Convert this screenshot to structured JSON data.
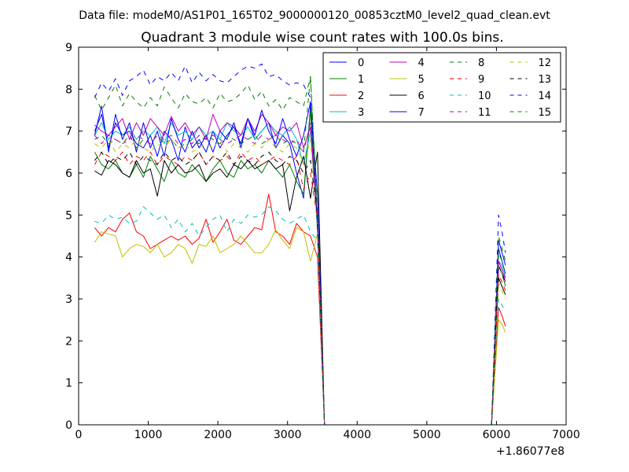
{
  "figure": {
    "suptitle": "Data file: modeM0/AS1P01_165T02_9000000120_00853cztM0_level2_quad_clean.evt",
    "title": "Quadrant 3 module wise count rates with 100.0s bins.",
    "x_offset_label": "+1.86077e8"
  },
  "chart_data": {
    "type": "line",
    "title": "Quadrant 3 module wise count rates with 100.0s bins.",
    "xlabel": "",
    "ylabel": "",
    "xlim": [
      0,
      7000
    ],
    "ylim": [
      0,
      9
    ],
    "x_offset": 186077000,
    "x_ticks": [
      0,
      1000,
      2000,
      3000,
      4000,
      5000,
      6000,
      7000
    ],
    "y_ticks": [
      0,
      1,
      2,
      3,
      4,
      5,
      6,
      7,
      8,
      9
    ],
    "grid": false,
    "legend_position": "top-right",
    "legend_columns": 4,
    "x": [
      230,
      330,
      430,
      530,
      630,
      730,
      830,
      930,
      1030,
      1130,
      1230,
      1330,
      1430,
      1530,
      1630,
      1730,
      1830,
      1930,
      2030,
      2130,
      2230,
      2330,
      2430,
      2530,
      2630,
      2730,
      2830,
      2930,
      3030,
      3130,
      3230,
      3330,
      3430,
      3530,
      3630,
      3730,
      3830,
      3930,
      4030,
      4130,
      4230,
      4330,
      4430,
      4530,
      4630,
      4730,
      4830,
      4930,
      5030,
      5130,
      5230,
      5330,
      5430,
      5530,
      5630,
      5730,
      5830,
      5930,
      6030,
      6080,
      6130
    ],
    "series": [
      {
        "name": "0",
        "color": "#0000ff",
        "dash": "solid",
        "values": [
          7.0,
          7.4,
          6.6,
          7.2,
          6.9,
          7.0,
          6.7,
          6.6,
          6.9,
          6.4,
          7.0,
          6.8,
          6.3,
          7.1,
          6.6,
          6.8,
          6.5,
          7.0,
          6.6,
          6.9,
          7.1,
          6.7,
          7.3,
          6.8,
          7.0,
          7.2,
          6.6,
          6.9,
          6.7,
          6.0,
          5.4,
          7.6,
          4.8,
          0,
          0,
          0,
          0,
          0,
          0,
          0,
          0,
          0,
          0,
          0,
          0,
          0,
          0,
          0,
          0,
          0,
          0,
          0,
          0,
          0,
          0,
          0,
          0,
          0,
          4.2,
          3.9,
          3.6
        ]
      },
      {
        "name": "1",
        "color": "#008000",
        "dash": "solid",
        "values": [
          6.5,
          6.2,
          6.1,
          6.3,
          6.0,
          5.9,
          6.2,
          5.9,
          6.4,
          6.1,
          5.8,
          6.3,
          6.0,
          5.9,
          6.2,
          6.0,
          5.8,
          6.1,
          6.3,
          6.0,
          5.9,
          6.3,
          6.1,
          6.2,
          6.0,
          6.3,
          6.1,
          5.9,
          6.2,
          5.8,
          5.5,
          7.5,
          4.6,
          0,
          0,
          0,
          0,
          0,
          0,
          0,
          0,
          0,
          0,
          0,
          0,
          0,
          0,
          0,
          0,
          0,
          0,
          0,
          0,
          0,
          0,
          0,
          0,
          0,
          3.8,
          3.6,
          3.3
        ]
      },
      {
        "name": "2",
        "color": "#ff0000",
        "dash": "solid",
        "values": [
          4.7,
          4.5,
          4.7,
          4.6,
          4.9,
          5.05,
          4.6,
          4.5,
          4.2,
          4.3,
          4.4,
          4.5,
          4.4,
          4.5,
          4.3,
          4.45,
          4.9,
          4.35,
          4.6,
          4.9,
          4.4,
          4.3,
          4.5,
          4.7,
          4.65,
          5.5,
          4.6,
          4.5,
          4.3,
          4.8,
          4.6,
          4.5,
          4.0,
          0,
          0,
          0,
          0,
          0,
          0,
          0,
          0,
          0,
          0,
          0,
          0,
          0,
          0,
          0,
          0,
          0,
          0,
          0,
          0,
          0,
          0,
          0,
          0,
          0,
          2.8,
          2.6,
          2.35
        ]
      },
      {
        "name": "3",
        "color": "#00bfbf",
        "dash": "solid",
        "values": [
          6.9,
          7.2,
          6.8,
          7.0,
          6.9,
          7.1,
          6.8,
          7.0,
          6.9,
          7.1,
          6.7,
          7.2,
          6.9,
          7.0,
          6.8,
          7.1,
          6.9,
          7.0,
          6.8,
          7.2,
          7.0,
          6.9,
          7.1,
          6.8,
          7.0,
          7.2,
          7.0,
          6.9,
          7.1,
          6.8,
          6.2,
          7.0,
          4.7,
          0,
          0,
          0,
          0,
          0,
          0,
          0,
          0,
          0,
          0,
          0,
          0,
          0,
          0,
          0,
          0,
          0,
          0,
          0,
          0,
          0,
          0,
          0,
          0,
          0,
          3.9,
          3.8,
          3.5
        ]
      },
      {
        "name": "4",
        "color": "#bf00bf",
        "dash": "solid",
        "values": [
          7.15,
          7.0,
          6.9,
          7.1,
          7.3,
          6.8,
          7.2,
          6.9,
          7.3,
          7.1,
          6.9,
          7.35,
          7.0,
          7.2,
          6.9,
          7.1,
          6.8,
          7.4,
          7.0,
          7.2,
          7.1,
          6.9,
          7.3,
          7.0,
          7.4,
          7.2,
          6.9,
          7.1,
          7.0,
          7.2,
          6.6,
          7.1,
          4.8,
          0,
          0,
          0,
          0,
          0,
          0,
          0,
          0,
          0,
          0,
          0,
          0,
          0,
          0,
          0,
          0,
          0,
          0,
          0,
          0,
          0,
          0,
          0,
          0,
          0,
          3.9,
          3.7,
          3.4
        ]
      },
      {
        "name": "5",
        "color": "#bfbf00",
        "dash": "solid",
        "values": [
          4.35,
          4.6,
          4.55,
          4.5,
          4.0,
          4.2,
          4.3,
          4.25,
          4.1,
          4.3,
          4.0,
          4.1,
          4.3,
          4.2,
          3.85,
          4.3,
          4.25,
          4.5,
          4.1,
          4.2,
          4.3,
          4.5,
          4.3,
          4.1,
          4.1,
          4.3,
          4.65,
          4.4,
          4.2,
          4.7,
          4.6,
          3.9,
          4.55,
          0,
          0,
          0,
          0,
          0,
          0,
          0,
          0,
          0,
          0,
          0,
          0,
          0,
          0,
          0,
          0,
          0,
          0,
          0,
          0,
          0,
          0,
          0,
          0,
          0,
          2.5,
          2.4,
          2.2
        ]
      },
      {
        "name": "6",
        "color": "#000000",
        "dash": "solid",
        "values": [
          6.05,
          5.95,
          6.3,
          6.2,
          6.0,
          5.9,
          6.3,
          6.0,
          6.1,
          5.45,
          6.3,
          6.0,
          6.2,
          6.0,
          6.05,
          6.2,
          5.8,
          6.0,
          6.1,
          5.9,
          6.2,
          6.1,
          6.3,
          6.1,
          6.2,
          6.3,
          6.1,
          6.2,
          5.1,
          5.9,
          6.4,
          5.4,
          6.5,
          0,
          0,
          0,
          0,
          0,
          0,
          0,
          0,
          0,
          0,
          0,
          0,
          0,
          0,
          0,
          0,
          0,
          0,
          0,
          0,
          0,
          0,
          0,
          0,
          0,
          3.5,
          3.3,
          3.1
        ]
      },
      {
        "name": "7",
        "color": "#0000ff",
        "dash": "solid",
        "values": [
          6.9,
          7.6,
          6.5,
          7.4,
          6.8,
          7.2,
          6.5,
          7.2,
          6.6,
          7.0,
          6.4,
          7.3,
          6.8,
          6.5,
          7.0,
          6.6,
          6.9,
          6.5,
          7.0,
          6.8,
          7.2,
          6.6,
          7.3,
          6.9,
          7.5,
          7.0,
          6.7,
          7.3,
          6.8,
          6.4,
          6.9,
          7.7,
          5.5,
          0,
          0,
          0,
          0,
          0,
          0,
          0,
          0,
          0,
          0,
          0,
          0,
          0,
          0,
          0,
          0,
          0,
          0,
          0,
          0,
          0,
          0,
          0,
          0,
          0,
          4.4,
          4.1,
          3.8
        ]
      },
      {
        "name": "8",
        "color": "#008000",
        "dash": "dashed",
        "values": [
          6.8,
          6.9,
          6.7,
          6.8,
          6.7,
          6.9,
          6.6,
          6.8,
          6.7,
          6.9,
          6.7,
          6.8,
          6.6,
          6.7,
          6.8,
          6.7,
          6.9,
          6.8,
          6.7,
          6.9,
          6.8,
          6.7,
          6.8,
          6.9,
          6.7,
          6.8,
          6.9,
          6.7,
          6.8,
          6.7,
          6.5,
          8.3,
          4.9,
          0,
          0,
          0,
          0,
          0,
          0,
          0,
          0,
          0,
          0,
          0,
          0,
          0,
          0,
          0,
          0,
          0,
          0,
          0,
          0,
          0,
          0,
          0,
          0,
          0,
          4.1,
          3.9,
          3.6
        ]
      },
      {
        "name": "9",
        "color": "#ff0000",
        "dash": "dashed",
        "values": [
          6.2,
          6.5,
          6.4,
          6.3,
          6.5,
          6.2,
          6.4,
          6.3,
          6.5,
          6.2,
          6.4,
          6.3,
          6.2,
          6.4,
          6.3,
          6.5,
          6.2,
          6.4,
          6.3,
          6.4,
          6.2,
          6.5,
          6.3,
          6.4,
          6.2,
          6.3,
          6.4,
          6.3,
          6.2,
          6.4,
          5.6,
          6.0,
          4.9,
          0,
          0,
          0,
          0,
          0,
          0,
          0,
          0,
          0,
          0,
          0,
          0,
          0,
          0,
          0,
          0,
          0,
          0,
          0,
          0,
          0,
          0,
          0,
          0,
          0,
          3.6,
          3.4,
          3.2
        ]
      },
      {
        "name": "10",
        "color": "#00bfbf",
        "dash": "dashed",
        "values": [
          4.85,
          4.8,
          5.0,
          4.9,
          4.95,
          4.8,
          4.85,
          5.2,
          5.05,
          4.9,
          5.0,
          4.7,
          4.9,
          4.6,
          4.8,
          4.5,
          4.7,
          4.9,
          5.0,
          4.6,
          4.9,
          4.8,
          5.0,
          4.95,
          5.0,
          5.2,
          5.1,
          4.9,
          4.8,
          4.9,
          5.0,
          4.6,
          4.4,
          0,
          0,
          0,
          0,
          0,
          0,
          0,
          0,
          0,
          0,
          0,
          0,
          0,
          0,
          0,
          0,
          0,
          0,
          0,
          0,
          0,
          0,
          0,
          0,
          0,
          3.0,
          2.85,
          2.7
        ]
      },
      {
        "name": "11",
        "color": "#bf00bf",
        "dash": "dashed",
        "values": [
          6.9,
          6.7,
          6.9,
          6.8,
          6.7,
          6.8,
          6.9,
          6.8,
          6.7,
          6.9,
          6.8,
          6.9,
          6.7,
          6.8,
          6.7,
          6.9,
          6.8,
          6.9,
          6.8,
          6.7,
          6.8,
          6.9,
          6.8,
          6.7,
          6.9,
          6.8,
          6.9,
          6.8,
          6.7,
          6.8,
          6.5,
          7.2,
          4.9,
          0,
          0,
          0,
          0,
          0,
          0,
          0,
          0,
          0,
          0,
          0,
          0,
          0,
          0,
          0,
          0,
          0,
          0,
          0,
          0,
          0,
          0,
          0,
          0,
          0,
          3.9,
          3.7,
          3.5
        ]
      },
      {
        "name": "12",
        "color": "#bfbf00",
        "dash": "dashed",
        "values": [
          6.7,
          6.6,
          6.8,
          6.5,
          6.7,
          6.6,
          6.8,
          6.6,
          6.5,
          6.7,
          6.6,
          6.8,
          6.6,
          6.7,
          6.5,
          6.6,
          6.7,
          6.6,
          6.8,
          6.5,
          6.7,
          6.6,
          6.5,
          6.7,
          6.6,
          6.8,
          6.6,
          6.5,
          6.7,
          6.6,
          6.2,
          6.8,
          4.8,
          0,
          0,
          0,
          0,
          0,
          0,
          0,
          0,
          0,
          0,
          0,
          0,
          0,
          0,
          0,
          0,
          0,
          0,
          0,
          0,
          0,
          0,
          0,
          0,
          0,
          3.4,
          3.2,
          3.0
        ]
      },
      {
        "name": "13",
        "color": "#000000",
        "dash": "dashed",
        "values": [
          6.3,
          6.5,
          6.2,
          6.4,
          6.3,
          6.5,
          6.2,
          6.4,
          6.3,
          6.2,
          6.5,
          6.3,
          6.4,
          6.2,
          6.3,
          6.5,
          6.2,
          6.4,
          6.3,
          6.5,
          6.2,
          6.4,
          6.3,
          6.2,
          6.4,
          6.5,
          6.3,
          6.2,
          6.4,
          6.3,
          6.0,
          6.3,
          5.0,
          0,
          0,
          0,
          0,
          0,
          0,
          0,
          0,
          0,
          0,
          0,
          0,
          0,
          0,
          0,
          0,
          0,
          0,
          0,
          0,
          0,
          0,
          0,
          0,
          0,
          3.8,
          3.6,
          3.4
        ]
      },
      {
        "name": "14",
        "color": "#0000ff",
        "dash": "dashed",
        "values": [
          7.8,
          8.15,
          7.95,
          8.25,
          7.85,
          8.2,
          8.3,
          8.45,
          8.1,
          8.3,
          8.2,
          8.4,
          8.2,
          8.55,
          8.15,
          8.4,
          8.2,
          8.35,
          8.2,
          8.15,
          8.3,
          8.45,
          8.55,
          8.5,
          8.6,
          8.3,
          8.35,
          8.2,
          8.1,
          8.15,
          8.1,
          7.8,
          4.7,
          0,
          0,
          0,
          0,
          0,
          0,
          0,
          0,
          0,
          0,
          0,
          0,
          0,
          0,
          0,
          0,
          0,
          0,
          0,
          0,
          0,
          0,
          0,
          0,
          0,
          5.0,
          4.6,
          4.1
        ]
      },
      {
        "name": "15",
        "color": "#008000",
        "dash": "dashed",
        "values": [
          7.85,
          7.5,
          7.8,
          8.1,
          7.6,
          7.9,
          7.7,
          7.55,
          7.8,
          7.6,
          8.05,
          7.8,
          7.55,
          7.9,
          7.7,
          7.65,
          7.8,
          7.55,
          7.9,
          7.7,
          7.75,
          7.9,
          8.1,
          7.75,
          7.95,
          7.6,
          7.75,
          7.5,
          7.8,
          7.7,
          7.6,
          8.3,
          5.0,
          0,
          0,
          0,
          0,
          0,
          0,
          0,
          0,
          0,
          0,
          0,
          0,
          0,
          0,
          0,
          0,
          0,
          0,
          0,
          0,
          0,
          0,
          0,
          0,
          0,
          4.5,
          4.2,
          3.9
        ]
      }
    ]
  }
}
